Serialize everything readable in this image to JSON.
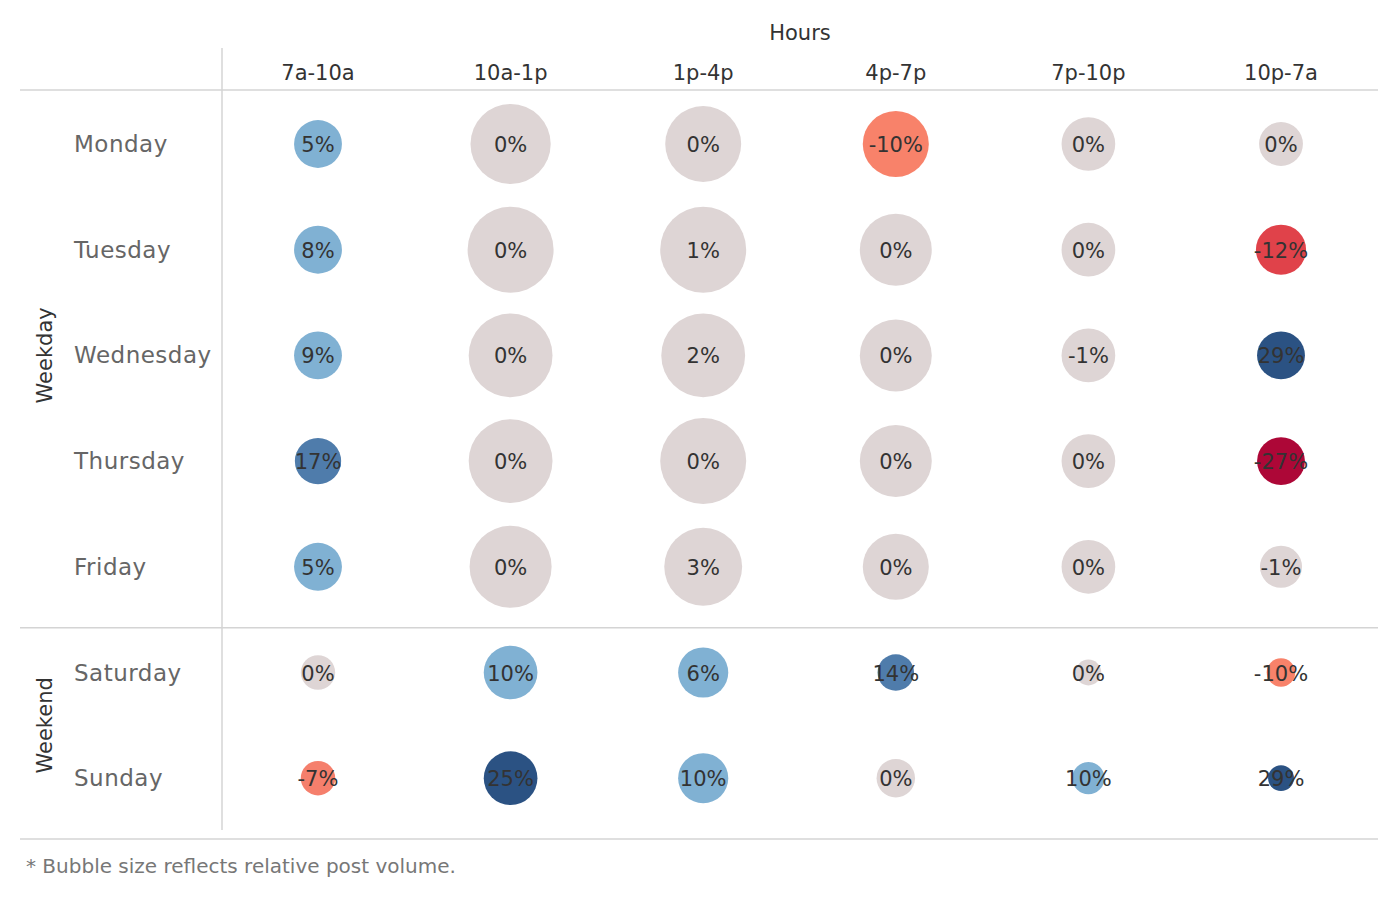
{
  "chart_data": {
    "type": "bubble_matrix",
    "x_axis_title": "Hours",
    "categories": [
      "7a-10a",
      "10a-1p",
      "1p-4p",
      "4p-7p",
      "7p-10p",
      "10p-7a"
    ],
    "data_labels": true,
    "groups": [
      {
        "name": "Weekday",
        "rows": [
          "Monday",
          "Tuesday",
          "Wednesday",
          "Thursday",
          "Friday"
        ],
        "values": [
          [
            5,
            0,
            0,
            -10,
            0,
            0
          ],
          [
            8,
            0,
            1,
            0,
            0,
            -12
          ],
          [
            9,
            0,
            2,
            0,
            -1,
            29
          ],
          [
            17,
            0,
            0,
            0,
            0,
            -27
          ],
          [
            5,
            0,
            3,
            0,
            0,
            -1
          ]
        ],
        "value_labels": [
          [
            "5%",
            "0%",
            "0%",
            "-10%",
            "0%",
            "0%"
          ],
          [
            "8%",
            "0%",
            "1%",
            "0%",
            "0%",
            "-12%"
          ],
          [
            "9%",
            "0%",
            "2%",
            "0%",
            "-1%",
            "29%"
          ],
          [
            "17%",
            "0%",
            "0%",
            "0%",
            "0%",
            "-27%"
          ],
          [
            "5%",
            "0%",
            "3%",
            "0%",
            "0%",
            "-1%"
          ]
        ],
        "sizes": [
          [
            31,
            87,
            78,
            59,
            39,
            26
          ],
          [
            31,
            100,
            100,
            70,
            39,
            34
          ],
          [
            31,
            95,
            95,
            70,
            39,
            31
          ],
          [
            29,
            95,
            100,
            70,
            39,
            31
          ],
          [
            31,
            91,
            82,
            59,
            39,
            24
          ]
        ],
        "colors": [
          [
            "#80b1d3",
            "#ded5d5",
            "#ded5d5",
            "#f8826a",
            "#ded5d5",
            "#ded5d5"
          ],
          [
            "#80b1d3",
            "#ded5d5",
            "#ded5d5",
            "#ded5d5",
            "#ded5d5",
            "#e0424a"
          ],
          [
            "#80b1d3",
            "#ded5d5",
            "#ded5d5",
            "#ded5d5",
            "#ded5d5",
            "#2b5283"
          ],
          [
            "#4f7cab",
            "#ded5d5",
            "#ded5d5",
            "#ded5d5",
            "#ded5d5",
            "#ad0737"
          ],
          [
            "#80b1d3",
            "#ded5d5",
            "#ded5d5",
            "#ded5d5",
            "#ded5d5",
            "#ded5d5"
          ]
        ]
      },
      {
        "name": "Weekend",
        "rows": [
          "Saturday",
          "Sunday"
        ],
        "values": [
          [
            0,
            10,
            6,
            14,
            0,
            -10
          ],
          [
            -7,
            25,
            10,
            0,
            10,
            29
          ]
        ],
        "value_labels": [
          [
            "0%",
            "10%",
            "6%",
            "14%",
            "0%",
            "-10%"
          ],
          [
            "-7%",
            "25%",
            "10%",
            "0%",
            "10%",
            "29%"
          ]
        ],
        "sizes": [
          [
            16,
            39,
            34,
            18,
            9,
            11
          ],
          [
            16,
            39,
            34,
            20,
            14,
            9
          ]
        ],
        "colors": [
          [
            "#ded5d5",
            "#80b1d3",
            "#80b1d3",
            "#4f7cab",
            "#ded5d5",
            "#f8826a"
          ],
          [
            "#f57f6c",
            "#2b5283",
            "#80b1d3",
            "#ded5d5",
            "#80b1d3",
            "#2b5283"
          ]
        ]
      }
    ],
    "footnote": "* Bubble size reflects relative post volume."
  }
}
